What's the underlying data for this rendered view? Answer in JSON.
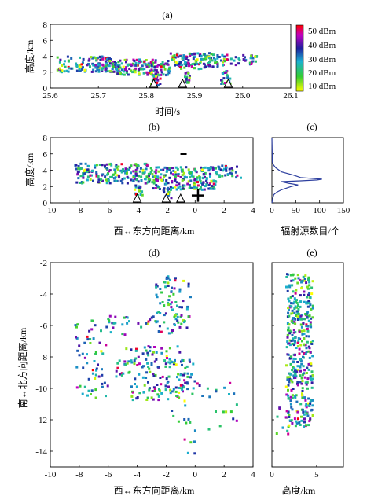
{
  "chart_data": [
    {
      "id": "a",
      "panel_label": "(a)",
      "type": "scatter",
      "xlabel": "时间/s",
      "ylabel": "高度/km",
      "xlim": [
        25.6,
        26.1
      ],
      "ylim": [
        0,
        8
      ],
      "xticks": [
        "25.6",
        "25.7",
        "25.8",
        "25.9",
        "26.0",
        "26.1"
      ],
      "yticks": [
        "0",
        "2",
        "4",
        "6",
        "8"
      ],
      "color_by": "power_dBm",
      "clusters": [
        {
          "x": [
            25.615,
            25.73
          ],
          "y": [
            2.0,
            4.0
          ],
          "n": 120
        },
        {
          "x": [
            25.73,
            25.85
          ],
          "y": [
            1.6,
            3.6
          ],
          "n": 160
        },
        {
          "x": [
            25.85,
            25.95
          ],
          "y": [
            2.4,
            4.4
          ],
          "n": 130
        },
        {
          "x": [
            25.95,
            26.03
          ],
          "y": [
            2.8,
            4.2
          ],
          "n": 40
        },
        {
          "x": [
            25.81,
            25.83
          ],
          "y": [
            0.2,
            2.0
          ],
          "n": 30
        },
        {
          "x": [
            25.88,
            25.89
          ],
          "y": [
            0.6,
            2.0
          ],
          "n": 20
        },
        {
          "x": [
            25.955,
            25.975
          ],
          "y": [
            0.4,
            2.2
          ],
          "n": 25
        }
      ],
      "markers": [
        {
          "x": 25.815,
          "symbol": "triangle"
        },
        {
          "x": 25.875,
          "symbol": "triangle"
        },
        {
          "x": 25.97,
          "symbol": "triangle"
        }
      ]
    },
    {
      "id": "b",
      "panel_label": "(b)",
      "type": "scatter",
      "xlabel": "西↔东方向距离/km",
      "ylabel": "高度/km",
      "xlim": [
        -10,
        4
      ],
      "ylim": [
        0,
        8
      ],
      "xticks": [
        "-10",
        "-8",
        "-6",
        "-4",
        "-2",
        "0",
        "2",
        "4"
      ],
      "yticks": [
        "0",
        "2",
        "4",
        "6",
        "8"
      ],
      "color_by": "power_dBm",
      "clusters": [
        {
          "x": [
            -8.3,
            -3.0
          ],
          "y": [
            2.4,
            4.8
          ],
          "n": 180
        },
        {
          "x": [
            -3.0,
            1.5
          ],
          "y": [
            1.6,
            4.4
          ],
          "n": 200
        },
        {
          "x": [
            1.5,
            3.2
          ],
          "y": [
            3.0,
            4.6
          ],
          "n": 30
        },
        {
          "x": [
            -4.2,
            -3.6
          ],
          "y": [
            0.8,
            2.2
          ],
          "n": 15
        },
        {
          "x": [
            -2.3,
            -1.6
          ],
          "y": [
            0.6,
            2.0
          ],
          "n": 15
        }
      ],
      "markers": [
        {
          "x": -4.0,
          "symbol": "triangle"
        },
        {
          "x": -2.0,
          "symbol": "triangle"
        },
        {
          "x": -1.0,
          "symbol": "triangle"
        }
      ],
      "charge_symbols": [
        {
          "label": "-",
          "x": -0.8,
          "y": 6.0
        },
        {
          "label": "+",
          "x": 0.2,
          "y": 0.9
        }
      ]
    },
    {
      "id": "c",
      "panel_label": "(c)",
      "type": "line",
      "xlabel": "辐射源数目/个",
      "xlim": [
        0,
        150
      ],
      "ylim": [
        0,
        8
      ],
      "xticks": [
        "0",
        "50",
        "100",
        "150"
      ],
      "series": [
        {
          "x": [
            0,
            2,
            4,
            10,
            20,
            40,
            55,
            35,
            20,
            60,
            95,
            105,
            60,
            45,
            20,
            8,
            4,
            1,
            0
          ],
          "y": [
            0.0,
            0.6,
            1.0,
            1.3,
            1.6,
            2.0,
            2.2,
            2.4,
            2.6,
            2.7,
            2.8,
            2.9,
            3.1,
            3.4,
            3.8,
            4.3,
            4.6,
            5.0,
            8.0
          ]
        }
      ]
    },
    {
      "id": "d",
      "panel_label": "(d)",
      "type": "scatter",
      "xlabel": "西↔东方向距离/km",
      "ylabel": "南↔北方向距离/km",
      "xlim": [
        -10,
        4
      ],
      "ylim": [
        -15,
        -2
      ],
      "xticks": [
        "-10",
        "-8",
        "-6",
        "-4",
        "-2",
        "0",
        "2",
        "4"
      ],
      "yticks": [
        "-14",
        "-12",
        "-10",
        "-8",
        "-6",
        "-4",
        "-2"
      ],
      "color_by": "power_dBm",
      "clusters": [
        {
          "x": [
            -2.7,
            -0.3
          ],
          "y": [
            -5.5,
            -2.8
          ],
          "n": 60
        },
        {
          "x": [
            -6.0,
            -0.3
          ],
          "y": [
            -6.6,
            -5.4
          ],
          "n": 50
        },
        {
          "x": [
            -8.3,
            -6.0
          ],
          "y": [
            -10.6,
            -5.6
          ],
          "n": 60
        },
        {
          "x": [
            -5.5,
            -0.8
          ],
          "y": [
            -9.3,
            -7.3
          ],
          "n": 80
        },
        {
          "x": [
            -4.5,
            -0.5
          ],
          "y": [
            -10.8,
            -9.3
          ],
          "n": 60
        },
        {
          "x": [
            -2.0,
            0.0
          ],
          "y": [
            -12.3,
            -8.0
          ],
          "n": 40
        },
        {
          "x": [
            0.0,
            3.0
          ],
          "y": [
            -12.8,
            -9.6
          ],
          "n": 20
        },
        {
          "x": [
            -1.2,
            0.2
          ],
          "y": [
            -14.6,
            -12.6
          ],
          "n": 6
        }
      ]
    },
    {
      "id": "e",
      "panel_label": "(e)",
      "type": "scatter",
      "xlabel": "高度/km",
      "xlim": [
        0,
        8
      ],
      "ylim": [
        -15,
        -2
      ],
      "xticks": [
        "0",
        "5"
      ],
      "color_by": "power_dBm",
      "clusters": [
        {
          "x": [
            1.6,
            4.6
          ],
          "y": [
            -12.5,
            -2.7
          ],
          "n": 380
        },
        {
          "x": [
            0.3,
            2.0
          ],
          "y": [
            -13.2,
            -11.0
          ],
          "n": 12
        }
      ]
    }
  ],
  "colorbar": {
    "unit": "dBm",
    "ticks": [
      "10 dBm",
      "20 dBm",
      "30 dBm",
      "40 dBm",
      "50 dBm"
    ],
    "range": [
      5,
      55
    ],
    "stops": [
      "#ffff00",
      "#33cc33",
      "#1ab0d0",
      "#1f1f9e",
      "#c000c0",
      "#ff0000"
    ]
  }
}
